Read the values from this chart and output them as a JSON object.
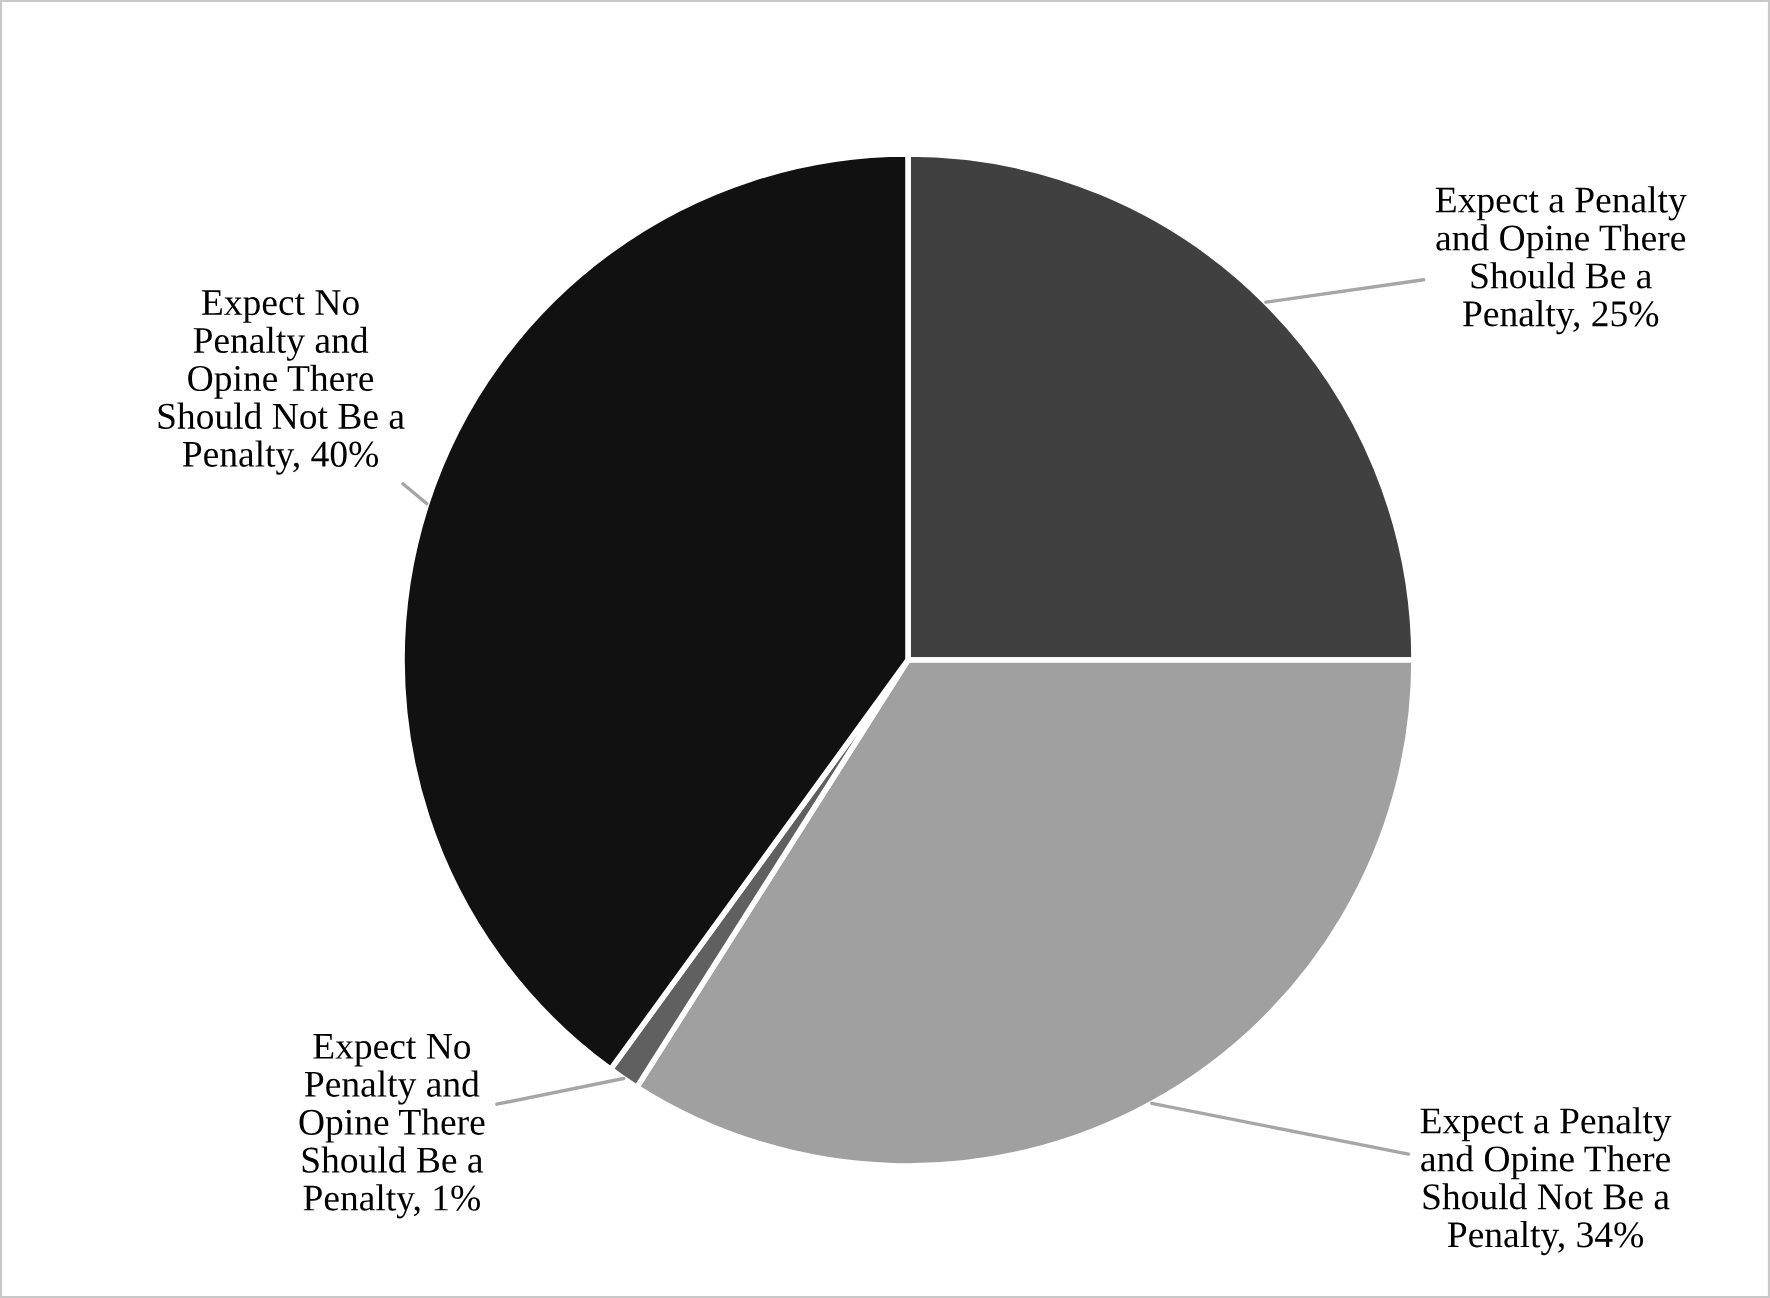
{
  "chart_data": {
    "type": "pie",
    "categories": [
      "Expect a Penalty and Opine There Should Be a Penalty",
      "Expect a Penalty and Opine There Should Not Be a Penalty",
      "Expect No Penalty and Opine There Should Be a Penalty",
      "Expect No Penalty and Opine There Should Not Be a Penalty"
    ],
    "values": [
      25,
      34,
      1,
      40
    ],
    "value_labels": [
      "25%",
      "34%",
      "1%",
      "40%"
    ],
    "colors": [
      "#404040",
      "#a0a0a0",
      "#606060",
      "#111111"
    ],
    "legend": false
  }
}
